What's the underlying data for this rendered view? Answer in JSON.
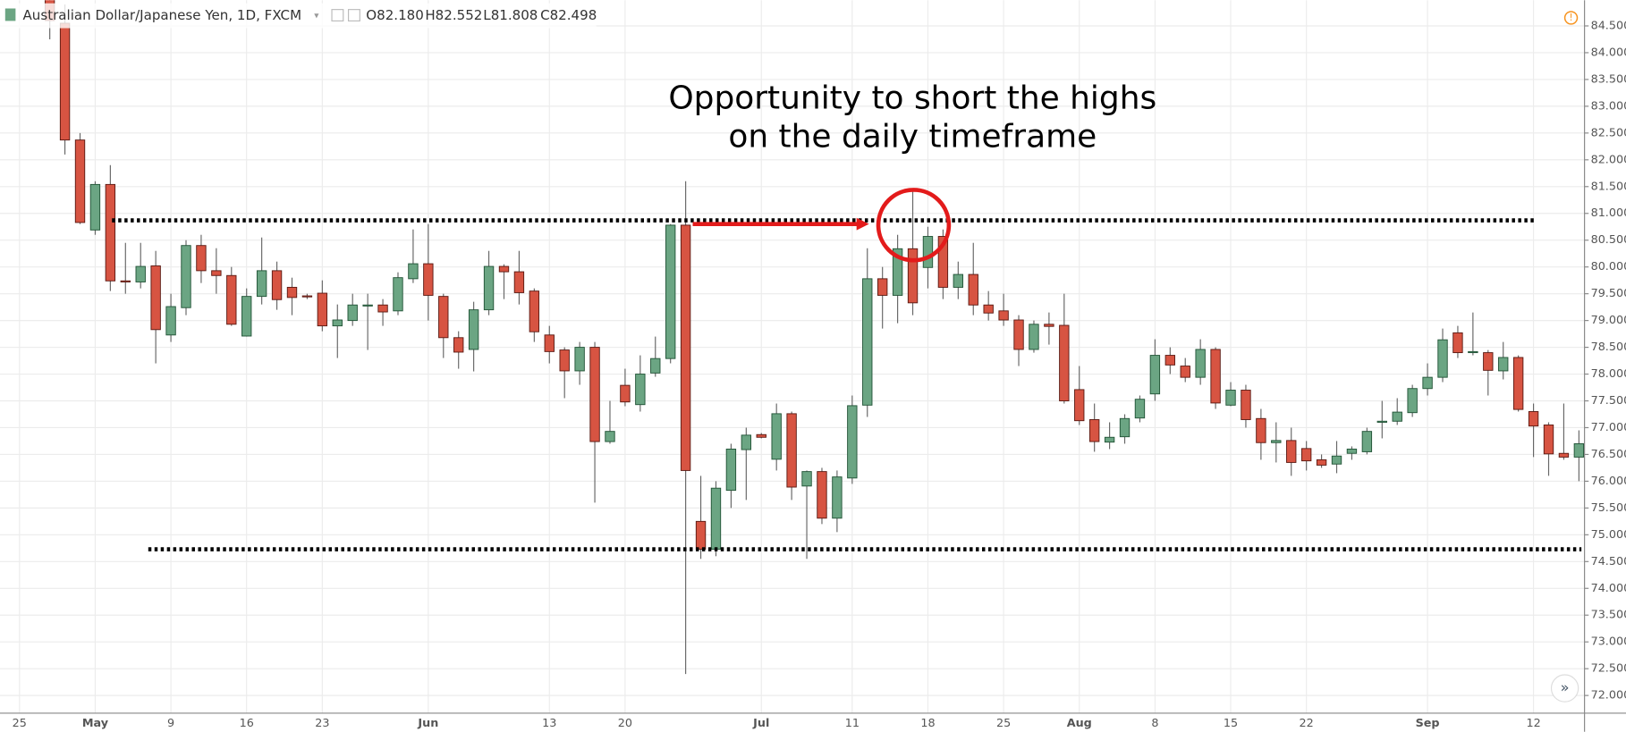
{
  "header": {
    "title": "Australian Dollar/Japanese Yen, 1D, FXCM",
    "ohlc": [
      "O82.180",
      "H82.552",
      "L81.808",
      "C82.498"
    ]
  },
  "chart_data": {
    "type": "candlestick",
    "annotation": [
      "Opportunity to short the highs",
      "on the daily timeframe"
    ],
    "up_color": "#6ba583",
    "down_color": "#d75442",
    "ylim": [
      71.67,
      84.98
    ],
    "yticks": [
      {
        "value": 72,
        "label": "72.000"
      },
      {
        "value": 72.5,
        "label": "72.500"
      },
      {
        "value": 73,
        "label": "73.000"
      },
      {
        "value": 73.5,
        "label": "73.500"
      },
      {
        "value": 74,
        "label": "74.000"
      },
      {
        "value": 74.5,
        "label": "74.500"
      },
      {
        "value": 75,
        "label": "75.000"
      },
      {
        "value": 75.5,
        "label": "75.500"
      },
      {
        "value": 76,
        "label": "76.000"
      },
      {
        "value": 76.5,
        "label": "76.500"
      },
      {
        "value": 77,
        "label": "77.000"
      },
      {
        "value": 77.5,
        "label": "77.500"
      },
      {
        "value": 78,
        "label": "78.000"
      },
      {
        "value": 78.5,
        "label": "78.500"
      },
      {
        "value": 79,
        "label": "79.000"
      },
      {
        "value": 79.5,
        "label": "79.500"
      },
      {
        "value": 80,
        "label": "80.000"
      },
      {
        "value": 80.5,
        "label": "80.500"
      },
      {
        "value": 81,
        "label": "81.000"
      },
      {
        "value": 81.5,
        "label": "81.500"
      },
      {
        "value": 82,
        "label": "82.000"
      },
      {
        "value": 82.5,
        "label": "82.500"
      },
      {
        "value": 83,
        "label": "83.000"
      },
      {
        "value": 83.5,
        "label": "83.500"
      },
      {
        "value": 84,
        "label": "84.000"
      },
      {
        "value": 84.5,
        "label": "84.500"
      }
    ],
    "grid": true,
    "hlines": [
      80.87,
      74.73
    ],
    "categories": [
      "25",
      null,
      null,
      null,
      null,
      "May",
      null,
      null,
      null,
      null,
      "9",
      null,
      null,
      null,
      null,
      "16",
      null,
      null,
      null,
      null,
      "23",
      null,
      null,
      null,
      null,
      null,
      null,
      "Jun",
      null,
      null,
      null,
      null,
      null,
      null,
      null,
      "13",
      null,
      null,
      null,
      null,
      "20",
      null,
      null,
      null,
      null,
      null,
      null,
      null,
      null,
      "Jul",
      null,
      null,
      null,
      null,
      null,
      "11",
      null,
      null,
      null,
      null,
      "18",
      null,
      null,
      null,
      null,
      "25",
      null,
      null,
      null,
      null,
      "Aug",
      null,
      null,
      null,
      null,
      "8",
      null,
      null,
      null,
      null,
      "15",
      null,
      null,
      null,
      null,
      "22",
      null,
      null,
      null,
      null,
      null,
      null,
      null,
      "Sep",
      null,
      null,
      null,
      null,
      null,
      null,
      "12",
      null,
      null,
      null
    ],
    "open": [
      null,
      null,
      85.4,
      84.55,
      82.37,
      80.69,
      81.54,
      79.74,
      79.72,
      80.02,
      78.73,
      79.24,
      80.4,
      79.93,
      79.84,
      78.71,
      79.45,
      79.93,
      79.62,
      79.46,
      79.51,
      78.9,
      79.0,
      79.28,
      79.29,
      79.18,
      79.78,
      80.06,
      79.45,
      78.68,
      78.46,
      79.2,
      80.01,
      79.91,
      79.55,
      78.73,
      78.45,
      78.06,
      78.5,
      76.74,
      77.79,
      77.43,
      78.02,
      78.29,
      80.78,
      75.25,
      74.73,
      75.83,
      76.59,
      76.87,
      76.41,
      77.26,
      75.91,
      76.18,
      75.31,
      76.06,
      77.42,
      79.78,
      79.47,
      80.34,
      79.99,
      80.57,
      79.62,
      79.86,
      79.29,
      79.18,
      79.01,
      78.46,
      78.93,
      78.91,
      77.71,
      77.15,
      76.73,
      76.83,
      77.18,
      77.63,
      78.35,
      78.15,
      77.94,
      78.46,
      77.42,
      77.7,
      77.17,
      76.72,
      76.76,
      76.61,
      76.4,
      76.32,
      76.52,
      76.55,
      77.1,
      77.12,
      77.28,
      77.73,
      77.94,
      78.77,
      78.4,
      78.4,
      78.06,
      78.31,
      77.3,
      77.05,
      76.52,
      76.45
    ],
    "high": [
      null,
      null,
      85.8,
      84.9,
      82.5,
      81.6,
      81.9,
      80.45,
      80.45,
      80.3,
      79.5,
      80.5,
      80.6,
      80.35,
      80.0,
      79.6,
      80.55,
      80.1,
      79.8,
      79.5,
      79.75,
      79.3,
      79.5,
      79.5,
      79.4,
      79.9,
      80.7,
      80.8,
      79.5,
      78.8,
      79.35,
      80.3,
      80.05,
      80.3,
      79.6,
      78.9,
      78.5,
      78.6,
      78.6,
      77.5,
      78.1,
      78.35,
      78.7,
      80.8,
      81.6,
      76.1,
      76.0,
      76.7,
      77.0,
      76.9,
      77.45,
      77.3,
      76.2,
      76.25,
      76.2,
      77.6,
      80.35,
      80.0,
      80.6,
      81.45,
      80.75,
      80.7,
      80.1,
      80.45,
      79.55,
      79.5,
      79.1,
      79.0,
      79.15,
      79.5,
      78.15,
      77.45,
      77.1,
      77.25,
      77.6,
      78.65,
      78.5,
      78.3,
      78.65,
      78.5,
      77.85,
      77.8,
      77.35,
      77.1,
      77.0,
      76.75,
      76.5,
      76.75,
      76.65,
      77.0,
      77.5,
      77.55,
      77.8,
      78.2,
      78.85,
      78.9,
      79.15,
      78.45,
      78.6,
      78.35,
      77.45,
      77.1,
      77.45,
      76.95
    ],
    "low": [
      null,
      null,
      84.25,
      82.1,
      80.8,
      80.6,
      79.55,
      79.5,
      79.6,
      78.2,
      78.6,
      79.1,
      79.7,
      79.5,
      78.9,
      78.7,
      79.3,
      79.2,
      79.1,
      79.4,
      78.8,
      78.3,
      78.9,
      78.45,
      78.9,
      79.1,
      79.7,
      79.0,
      78.3,
      78.1,
      78.05,
      79.1,
      79.4,
      79.3,
      78.6,
      78.2,
      77.55,
      77.8,
      75.6,
      76.7,
      77.4,
      77.3,
      77.95,
      78.2,
      72.4,
      74.55,
      74.6,
      75.5,
      75.65,
      76.8,
      76.2,
      75.65,
      74.55,
      75.2,
      75.05,
      75.95,
      77.2,
      78.85,
      78.95,
      79.1,
      79.6,
      79.4,
      79.4,
      79.1,
      79.0,
      78.9,
      78.15,
      78.4,
      78.55,
      77.45,
      77.05,
      76.55,
      76.6,
      76.7,
      77.1,
      77.5,
      78.0,
      77.85,
      77.8,
      77.35,
      77.4,
      77.0,
      76.4,
      76.35,
      76.1,
      76.2,
      76.25,
      76.15,
      76.4,
      76.5,
      76.8,
      77.05,
      77.2,
      77.6,
      77.85,
      78.3,
      78.35,
      77.6,
      77.9,
      77.3,
      76.45,
      76.1,
      76.4,
      76.0
    ],
    "close": [
      null,
      null,
      84.6,
      82.37,
      80.83,
      81.54,
      79.74,
      79.72,
      80.01,
      78.83,
      79.26,
      80.4,
      79.93,
      79.84,
      78.93,
      79.45,
      79.93,
      79.39,
      79.43,
      79.45,
      78.9,
      79.01,
      79.29,
      79.29,
      79.16,
      79.8,
      80.06,
      79.47,
      78.68,
      78.41,
      79.2,
      80.01,
      79.91,
      79.52,
      78.79,
      78.42,
      78.06,
      78.5,
      76.74,
      76.93,
      77.48,
      78.0,
      78.29,
      80.78,
      76.2,
      74.73,
      75.87,
      76.6,
      76.86,
      76.82,
      77.26,
      75.89,
      76.18,
      75.31,
      76.08,
      77.41,
      79.78,
      79.47,
      80.34,
      79.33,
      80.57,
      79.62,
      79.86,
      79.29,
      79.14,
      79.01,
      78.46,
      78.93,
      78.89,
      77.5,
      77.13,
      76.74,
      76.82,
      77.17,
      77.53,
      78.35,
      78.17,
      77.94,
      78.46,
      77.46,
      77.7,
      77.15,
      76.72,
      76.76,
      76.35,
      76.38,
      76.3,
      76.47,
      76.6,
      76.93,
      77.12,
      77.29,
      77.73,
      77.94,
      78.64,
      78.4,
      78.42,
      78.07,
      78.31,
      77.34,
      77.03,
      76.51,
      76.45,
      76.7
    ]
  }
}
